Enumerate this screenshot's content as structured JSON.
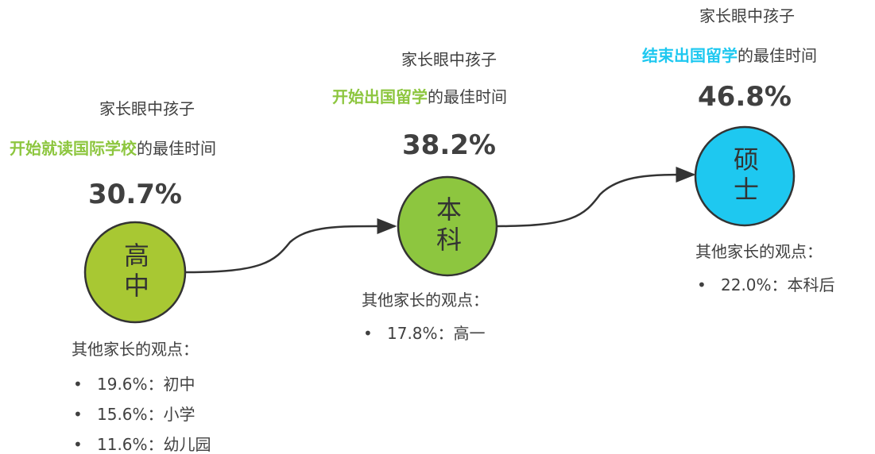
{
  "stages": [
    {
      "intro": "家长眼中孩子",
      "highlight": "开始就读国际学校",
      "suffix": "的最佳时间",
      "percent": "30.7%",
      "circle": "高中",
      "others_title": "其他家长的观点：",
      "others": [
        "19.6%：初中",
        "15.6%：小学",
        "11.6%：幼儿园"
      ]
    },
    {
      "intro": "家长眼中孩子",
      "highlight": "开始出国留学",
      "suffix": "的最佳时间",
      "percent": "38.2%",
      "circle": "本科",
      "others_title": "其他家长的观点：",
      "others": [
        "17.8%：高一"
      ]
    },
    {
      "intro": "家长眼中孩子",
      "highlight": "结束出国留学",
      "suffix": "的最佳时间",
      "percent": "46.8%",
      "circle": "硕士",
      "others_title": "其他家长的观点：",
      "others": [
        "22.0%：本科后"
      ]
    }
  ]
}
